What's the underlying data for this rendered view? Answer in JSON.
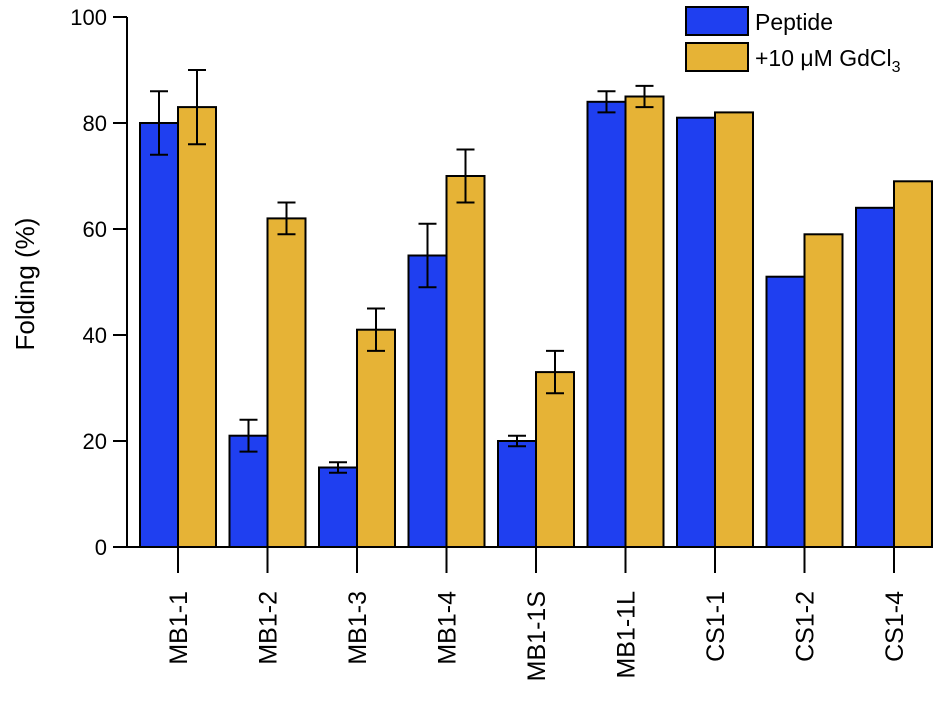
{
  "chart_data": {
    "type": "bar",
    "title": "",
    "xlabel": "",
    "ylabel": "Folding (%)",
    "ylim": [
      0,
      100
    ],
    "yticks": [
      "0",
      "20",
      "40",
      "60",
      "80",
      "100"
    ],
    "categories": [
      "MB1-1",
      "MB1-2",
      "MB1-3",
      "MB1-4",
      "MB1-1S",
      "MB1-1L",
      "CS1-1",
      "CS1-2",
      "CS1-4"
    ],
    "series": [
      {
        "name": "Peptide",
        "color": "#1f3ff0",
        "values": [
          80,
          21,
          15,
          55,
          20,
          84,
          81,
          51,
          64
        ],
        "errors": [
          6,
          3,
          1,
          6,
          1,
          2,
          null,
          null,
          null
        ]
      },
      {
        "name": "+10 μM GdCl",
        "name_subscript": "3",
        "color": "#e6b336",
        "values": [
          83,
          62,
          41,
          70,
          33,
          85,
          82,
          59,
          69
        ],
        "errors": [
          7,
          3,
          4,
          5,
          4,
          2,
          null,
          null,
          null
        ]
      }
    ],
    "legend_position": "top-right",
    "grid": false
  }
}
